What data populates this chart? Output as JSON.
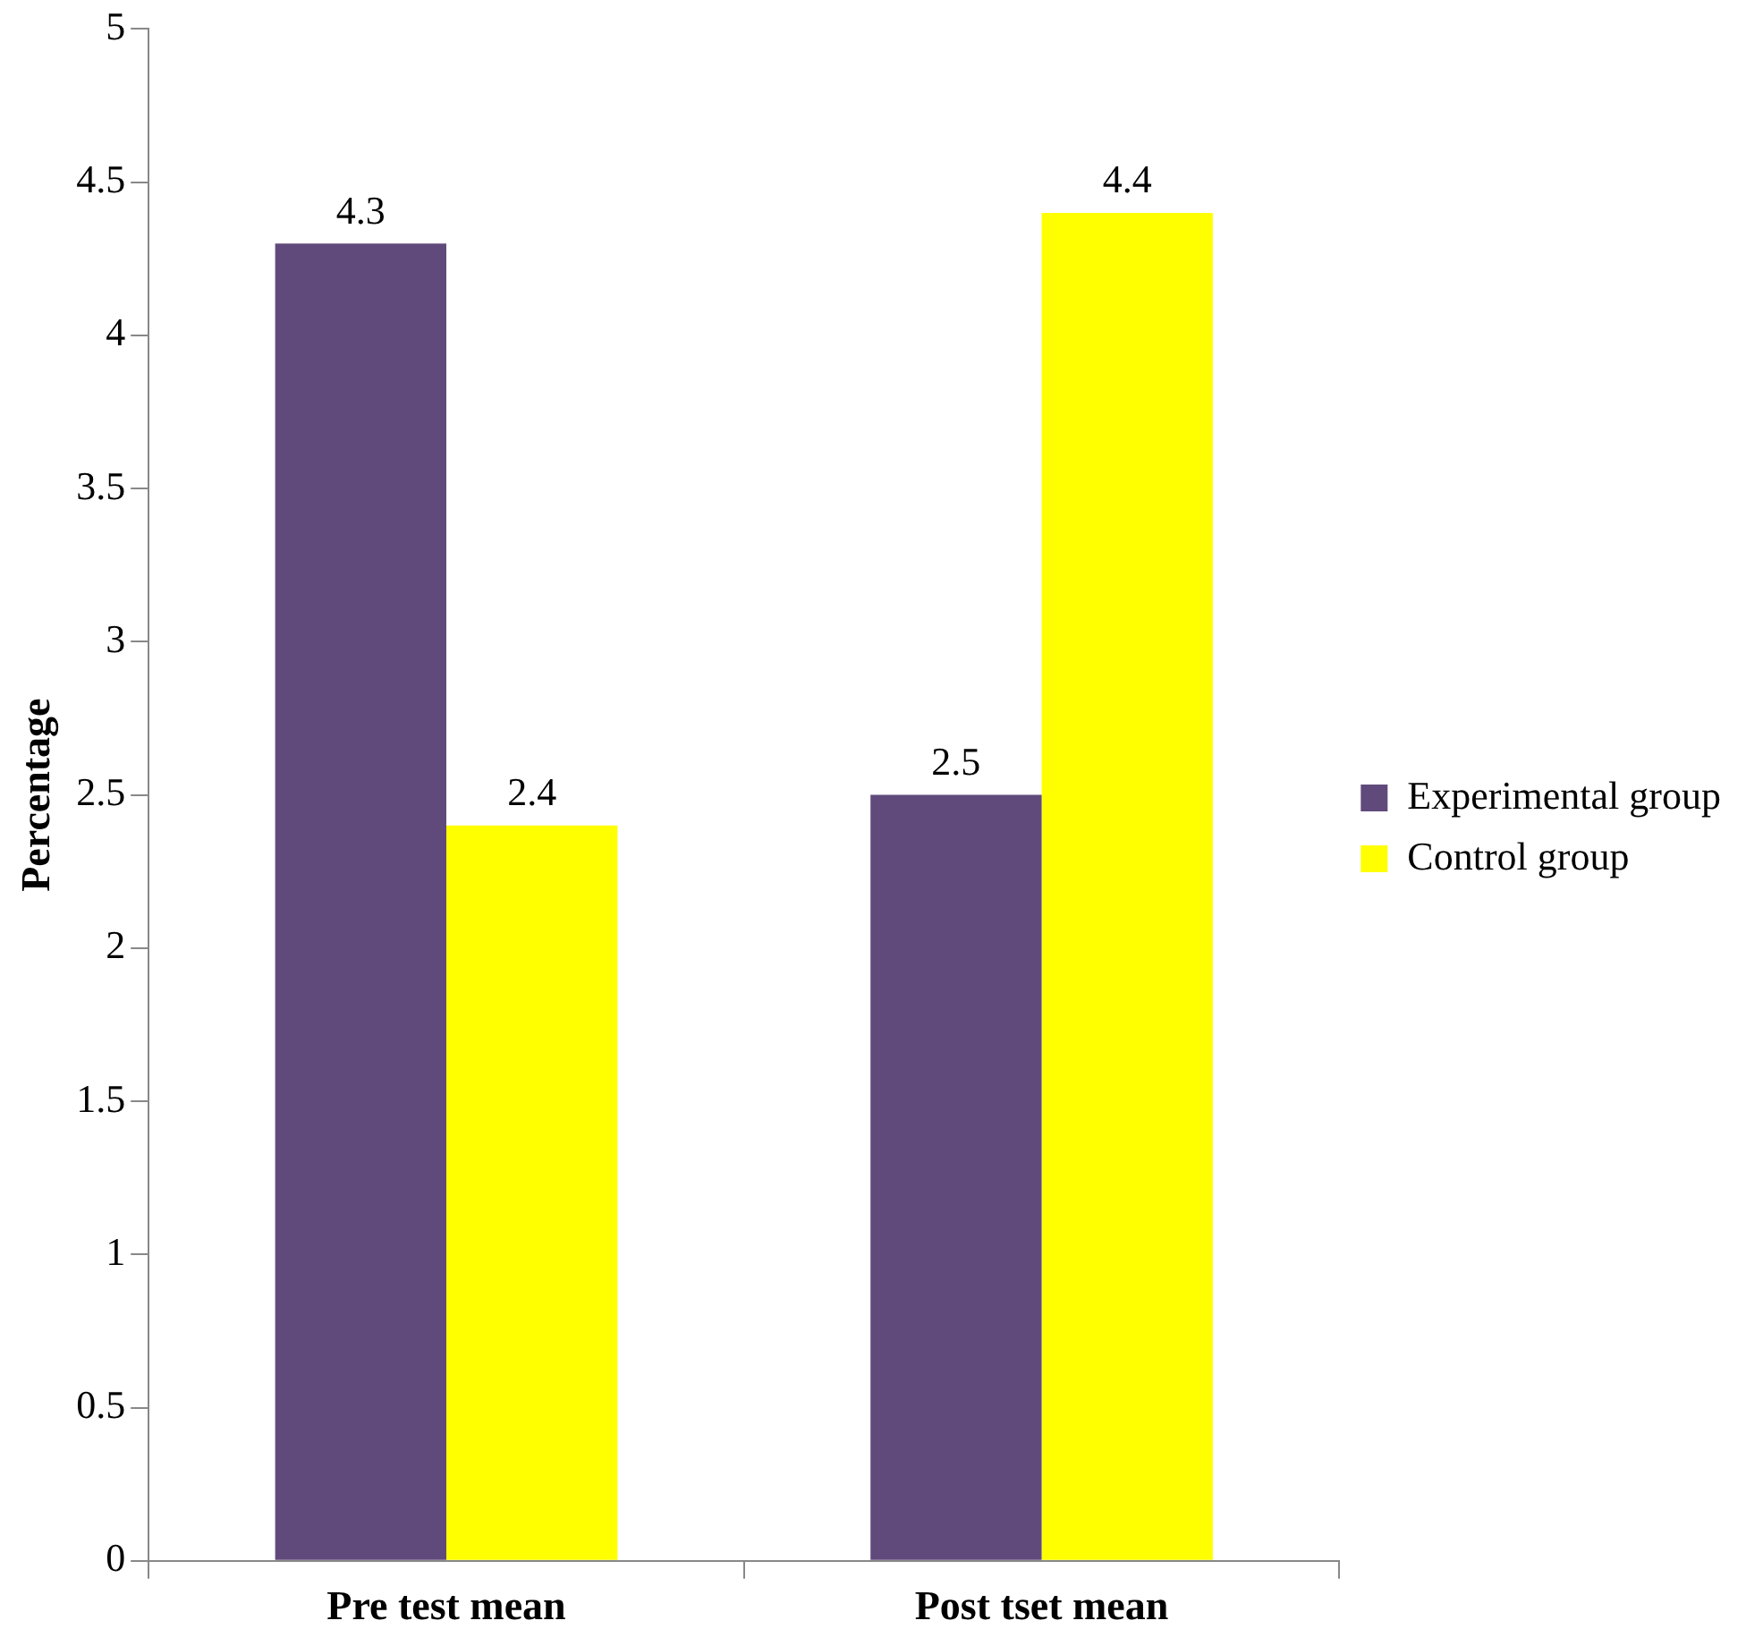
{
  "chart_data": {
    "type": "bar",
    "ylabel": "Percentage",
    "categories": [
      "Pre test mean",
      "Post tset mean"
    ],
    "series": [
      {
        "name": "Experimental group",
        "color": "#604a7b",
        "values": [
          4.3,
          2.5
        ]
      },
      {
        "name": "Control group",
        "color": "#ffff00",
        "values": [
          2.4,
          4.4
        ]
      }
    ],
    "ylim": [
      0,
      5
    ],
    "yticks": [
      0,
      0.5,
      1,
      1.5,
      2,
      2.5,
      3,
      3.5,
      4,
      4.5,
      5
    ],
    "grid": false,
    "legend": "right",
    "data_labels": true
  }
}
